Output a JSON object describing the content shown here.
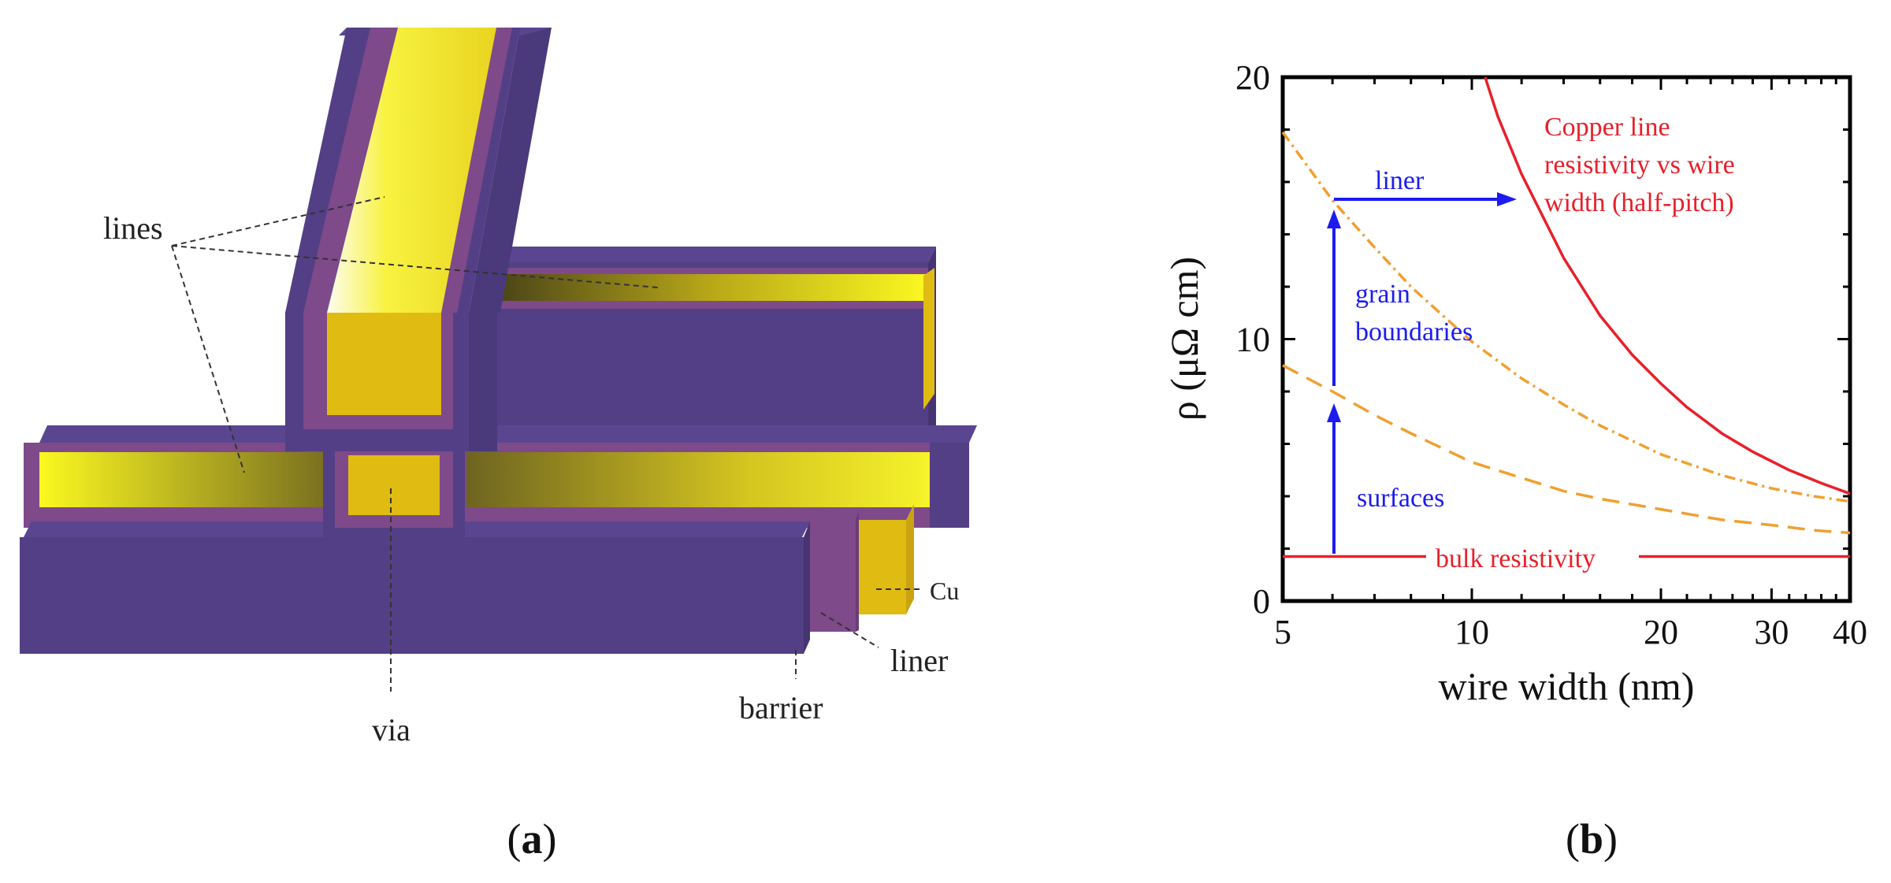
{
  "panel_a": {
    "caption": "a",
    "labels": {
      "lines": "lines",
      "via": "via",
      "cu": "Cu",
      "liner": "liner",
      "barrier": "barrier"
    },
    "colors": {
      "barrier": "#533f85",
      "liner": "#7e4a8a",
      "copper": "#e0bb12",
      "copper_highlight": "#fbf820"
    }
  },
  "panel_b": {
    "caption": "b",
    "annotations": {
      "title_line1": "Copper line",
      "title_line2": "resistivity vs wire",
      "title_line3": "width (half-pitch)",
      "liner": "liner",
      "grain_line1": "grain",
      "grain_line2": "boundaries",
      "surfaces": "surfaces",
      "bulk": "bulk resistivity"
    },
    "colors": {
      "total": "#e8202a",
      "bulk": "#e8202a",
      "grain": "#f0a030",
      "surfaces": "#f0a030",
      "arrows": "#1c1cf0",
      "title": "#e8202a"
    }
  },
  "chart_data": {
    "type": "line",
    "xlabel": "wire width (nm)",
    "ylabel": "ρ (μΩ cm)",
    "xscale": "log",
    "xlim": [
      5,
      40
    ],
    "ylim": [
      0,
      20
    ],
    "xticks": [
      5,
      10,
      20,
      30,
      40
    ],
    "xtick_labels": [
      "5",
      "10",
      "20",
      "30",
      "40"
    ],
    "yticks": [
      0,
      10,
      20
    ],
    "ytick_labels": [
      "0",
      "10",
      "20"
    ],
    "grid": false,
    "series": [
      {
        "name": "Copper line resistivity vs wire width (half-pitch)",
        "style": "solid",
        "x": [
          10.5,
          11,
          12,
          14,
          16,
          18,
          20,
          22,
          25,
          28,
          32,
          36,
          40
        ],
        "y": [
          20.0,
          18.5,
          16.3,
          13.1,
          10.9,
          9.4,
          8.3,
          7.4,
          6.4,
          5.7,
          5.0,
          4.5,
          4.1
        ]
      },
      {
        "name": "grain boundaries",
        "style": "dash-dot",
        "x": [
          5,
          6,
          7,
          8,
          10,
          12,
          14,
          16,
          20,
          25,
          30,
          35,
          40
        ],
        "y": [
          17.9,
          15.3,
          13.5,
          12.0,
          9.9,
          8.5,
          7.5,
          6.7,
          5.6,
          4.8,
          4.3,
          4.0,
          3.8
        ]
      },
      {
        "name": "surfaces",
        "style": "dashed",
        "x": [
          5,
          6,
          7,
          8,
          10,
          12,
          14,
          16,
          20,
          25,
          30,
          35,
          40
        ],
        "y": [
          9.0,
          8.0,
          7.1,
          6.4,
          5.3,
          4.7,
          4.2,
          3.9,
          3.5,
          3.1,
          2.9,
          2.7,
          2.6
        ]
      },
      {
        "name": "bulk resistivity",
        "style": "solid",
        "x": [
          5,
          40
        ],
        "y": [
          1.7,
          1.7
        ]
      }
    ]
  }
}
